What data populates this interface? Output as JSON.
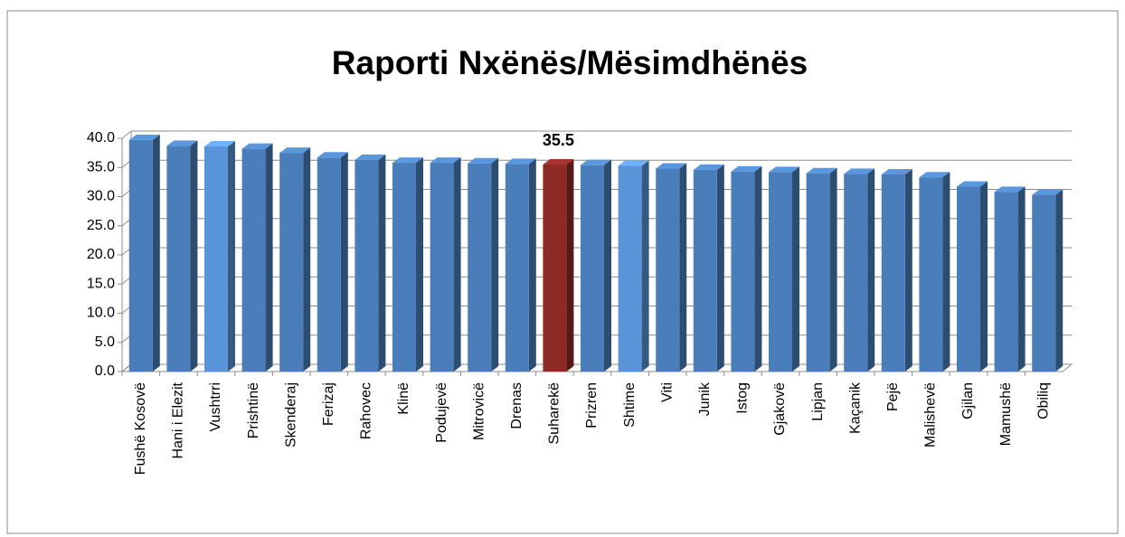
{
  "chart_data": {
    "type": "bar3d",
    "title": "Raporti Nxënës/Mësimdhënës",
    "categories": [
      "Fushë Kosovë",
      "Hani i Elezit",
      "Vushtrri",
      "Prishtinë",
      "Skenderaj",
      "Ferizaj",
      "Rahovec",
      "Klinë",
      "Podujevë",
      "Mitrovicë",
      "Drenas",
      "Suharekë",
      "Prizren",
      "Shtime",
      "Viti",
      "Junik",
      "Istog",
      "Gjakovë",
      "Lipjan",
      "Kaçanik",
      "Pejë",
      "Malishevë",
      "Gjilan",
      "Mamushë",
      "Obiliq"
    ],
    "values": [
      39.7,
      38.7,
      38.6,
      38.2,
      37.5,
      36.7,
      36.3,
      35.8,
      35.8,
      35.7,
      35.6,
      35.5,
      35.4,
      35.3,
      34.8,
      34.6,
      34.3,
      34.2,
      34.0,
      33.9,
      33.8,
      33.3,
      31.7,
      30.8,
      30.3
    ],
    "value_labels": [
      null,
      null,
      null,
      null,
      null,
      null,
      null,
      null,
      null,
      null,
      null,
      "35.5",
      null,
      null,
      null,
      null,
      null,
      null,
      null,
      null,
      null,
      null,
      null,
      null,
      null
    ],
    "colors": [
      "#4a7ebb",
      "#4a7ebb",
      "#5a94d8",
      "#4a7ebb",
      "#4a7ebb",
      "#4a7ebb",
      "#4a7ebb",
      "#4a7ebb",
      "#4a7ebb",
      "#4a7ebb",
      "#4a7ebb",
      "#8e2a26",
      "#4a7ebb",
      "#5a94d8",
      "#4a7ebb",
      "#4a7ebb",
      "#4a7ebb",
      "#4a7ebb",
      "#4a7ebb",
      "#4a7ebb",
      "#4a7ebb",
      "#4a7ebb",
      "#4a7ebb",
      "#4a7ebb",
      "#4a7ebb"
    ],
    "ylim": [
      0,
      40
    ],
    "yticks": [
      {
        "value": 0,
        "label": "0.0"
      },
      {
        "value": 5,
        "label": "5.0"
      },
      {
        "value": 10,
        "label": "10.0"
      },
      {
        "value": 15,
        "label": "15.0"
      },
      {
        "value": 20,
        "label": "20.0"
      },
      {
        "value": 25,
        "label": "25.0"
      },
      {
        "value": 30,
        "label": "30.0"
      },
      {
        "value": 35,
        "label": "35.0"
      },
      {
        "value": 40,
        "label": "40.0"
      }
    ],
    "grid": true
  }
}
